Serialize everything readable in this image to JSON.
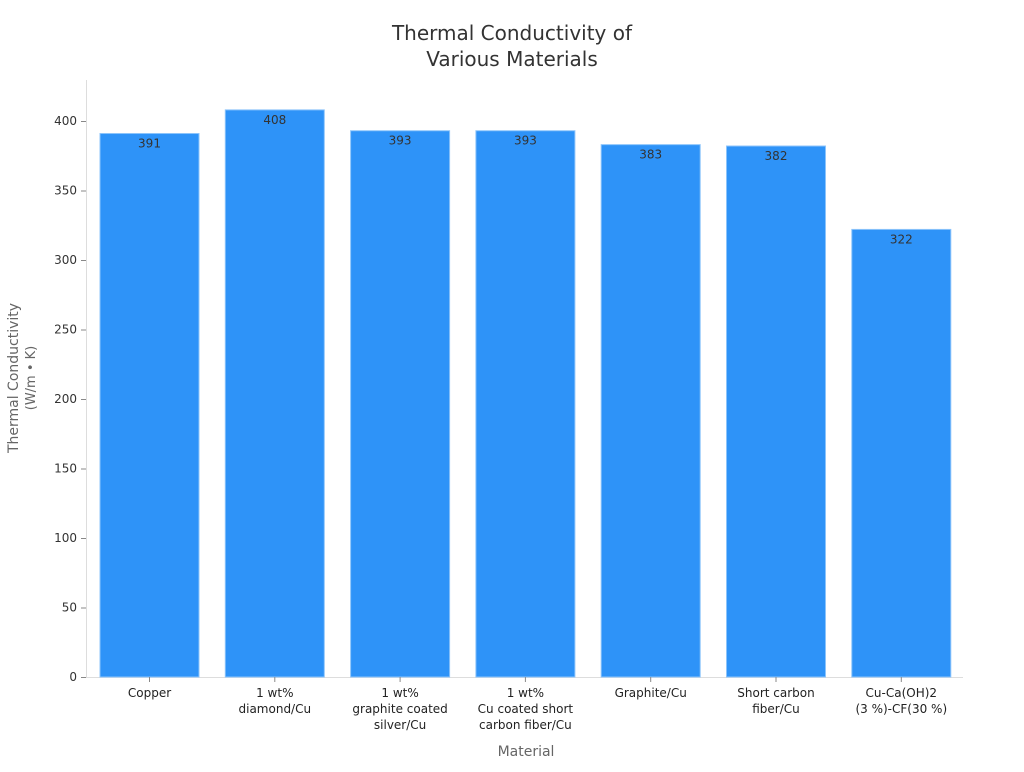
{
  "chart_data": {
    "type": "bar",
    "title": [
      "Thermal Conductivity of",
      "Various Materials"
    ],
    "xlabel": "Material",
    "ylabel": [
      "Thermal Conductivity",
      "(W/m • K)"
    ],
    "ylim": [
      0,
      430
    ],
    "yticks": [
      0,
      50,
      100,
      150,
      200,
      250,
      300,
      350,
      400
    ],
    "grid": false,
    "categories": [
      [
        "Copper"
      ],
      [
        "1 wt%",
        "diamond/Cu"
      ],
      [
        "1 wt%",
        "graphite coated",
        "silver/Cu"
      ],
      [
        "1 wt%",
        "Cu coated short",
        "carbon fiber/Cu"
      ],
      [
        "Graphite/Cu"
      ],
      [
        "Short carbon",
        "fiber/Cu"
      ],
      [
        "Cu-Ca(OH)2",
        "(3 %)-CF(30 %)"
      ]
    ],
    "values": [
      391,
      408,
      393,
      393,
      383,
      382,
      322
    ],
    "bar_color": "#2e93f8",
    "label_color": "#333333"
  }
}
